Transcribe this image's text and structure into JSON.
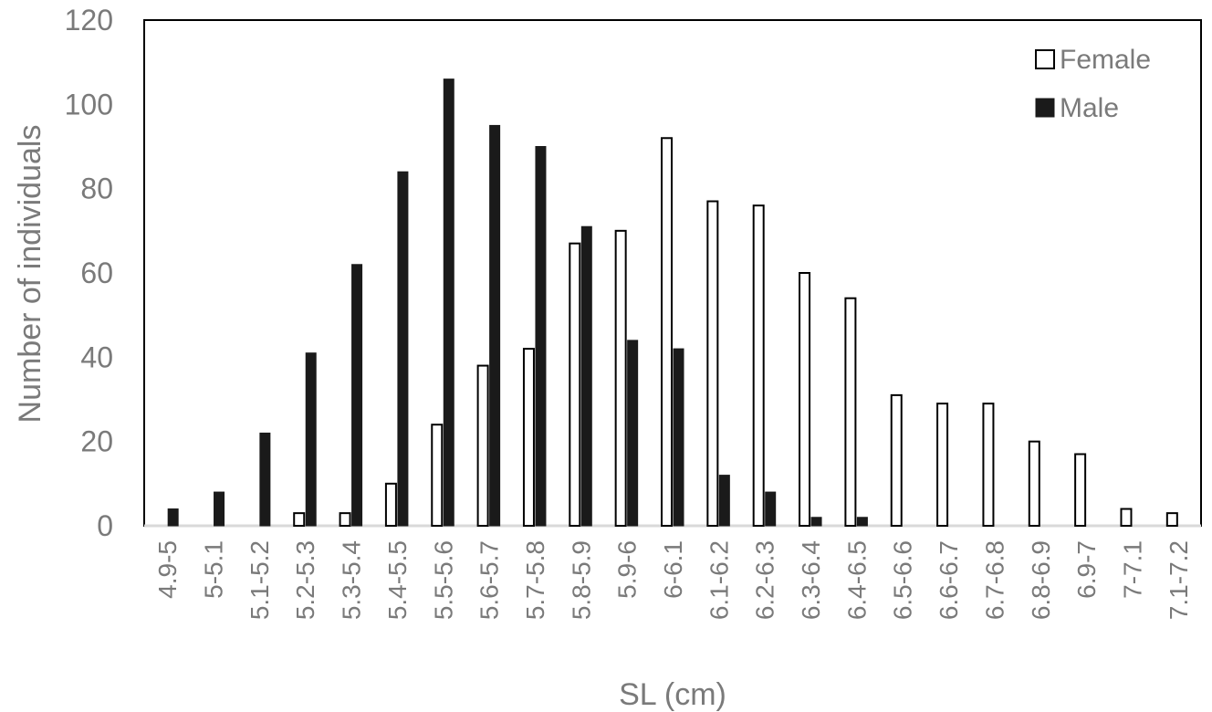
{
  "chart_data": {
    "type": "bar",
    "xlabel": "SL (cm)",
    "ylabel": "Number of individuals",
    "ylim": [
      0,
      120
    ],
    "yticks": [
      0,
      20,
      40,
      60,
      80,
      100,
      120
    ],
    "grid": false,
    "legend_position": "top-right",
    "categories": [
      "4.9-5",
      "5-5.1",
      "5.1-5.2",
      "5.2-5.3",
      "5.3-5.4",
      "5.4-5.5",
      "5.5-5.6",
      "5.6-5.7",
      "5.7-5.8",
      "5.8-5.9",
      "5.9-6",
      "6-6.1",
      "6.1-6.2",
      "6.2-6.3",
      "6.3-6.4",
      "6.4-6.5",
      "6.5-6.6",
      "6.6-6.7",
      "6.7-6.8",
      "6.8-6.9",
      "6.9-7",
      "7-7.1",
      "7.1-7.2"
    ],
    "series": [
      {
        "name": "Female",
        "style": "outline",
        "color": "#000000",
        "values": [
          0,
          0,
          0,
          3,
          3,
          10,
          24,
          38,
          42,
          67,
          70,
          92,
          77,
          76,
          60,
          54,
          31,
          29,
          29,
          20,
          17,
          4,
          3
        ]
      },
      {
        "name": "Male",
        "style": "filled",
        "color": "#1a1a1a",
        "values": [
          4,
          8,
          22,
          41,
          62,
          84,
          106,
          95,
          90,
          71,
          44,
          42,
          12,
          8,
          2,
          2,
          0,
          0,
          0,
          0,
          0,
          0,
          0
        ]
      }
    ]
  }
}
